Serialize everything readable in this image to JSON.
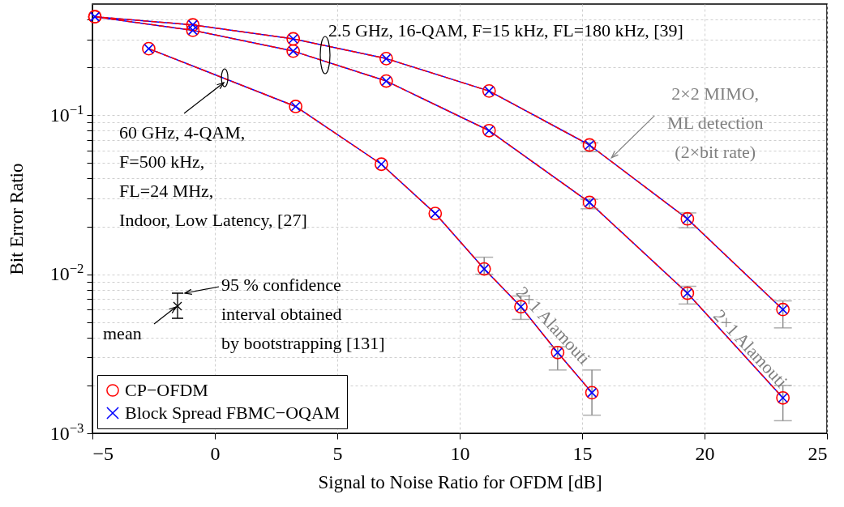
{
  "chart_data": {
    "type": "line",
    "xlabel": "Signal to Noise Ratio for OFDM [dB]",
    "ylabel": "Bit Error Ratio",
    "log": true,
    "grid": true,
    "legend": "bottom left",
    "xlim": [
      -5,
      25
    ],
    "xticks": [
      {
        "value": -5,
        "label": "−5"
      },
      0,
      5,
      10,
      15,
      20,
      25
    ],
    "ylim": [
      0.001,
      0.5
    ],
    "yticks": [
      {
        "value": 0.001,
        "label": "10$^{−3}$"
      },
      {
        "value": 0.002,
        "label": null
      },
      {
        "value": 0.003,
        "label": null
      },
      {
        "value": 0.004,
        "label": null
      },
      {
        "value": 0.005,
        "label": null
      },
      {
        "value": 0.006,
        "label": null
      },
      {
        "value": 0.007,
        "label": null
      },
      {
        "value": 0.008,
        "label": null
      },
      {
        "value": 0.009,
        "label": null
      },
      {
        "value": 0.01,
        "label": "10$^{−2}$"
      },
      {
        "value": 0.02,
        "label": null
      },
      {
        "value": 0.03,
        "label": null
      },
      {
        "value": 0.04,
        "label": null
      },
      {
        "value": 0.05,
        "label": null
      },
      {
        "value": 0.06,
        "label": null
      },
      {
        "value": 0.07,
        "label": null
      },
      {
        "value": 0.08,
        "label": null
      },
      {
        "value": 0.09,
        "label": null
      },
      {
        "value": 0.1,
        "label": "10$^{−1}$"
      },
      {
        "value": 0.2,
        "label": null
      },
      {
        "value": 0.3,
        "label": null
      },
      {
        "value": 0.4,
        "label": null
      }
    ],
    "series": [
      {
        "name": "CP−OFDM",
        "color": "#ff0000",
        "marker": "circle",
        "line_style": "dashed",
        "x": [
          -4.9,
          -0.9,
          3.2,
          7.0,
          11.2,
          15.3,
          19.3,
          23.2
        ],
        "values": [
          0.416,
          0.37,
          0.302,
          0.227,
          0.142,
          0.065,
          0.0223,
          0.006
        ],
        "errors": [
          null,
          null,
          null,
          null,
          null,
          [
            0.059,
            0.067
          ],
          [
            0.0196,
            0.0243
          ],
          [
            0.0046,
            0.0068
          ]
        ]
      },
      {
        "color": "#ff0000",
        "marker": "circle",
        "line_style": "dashed",
        "x": [
          -4.9,
          -0.9,
          3.2,
          7.0,
          11.2,
          15.3,
          19.3,
          23.2
        ],
        "values": [
          0.416,
          0.342,
          0.253,
          0.164,
          0.08,
          0.0283,
          0.0076,
          0.00167
        ],
        "errors": [
          null,
          null,
          null,
          null,
          null,
          [
            0.0258,
            0.0296
          ],
          [
            0.0065,
            0.0084
          ],
          [
            0.0012,
            0.002
          ]
        ]
      },
      {
        "color": "#ff0000",
        "marker": "circle",
        "line_style": "dashed",
        "x": [
          -2.7,
          3.3,
          6.8,
          9.0,
          11.0,
          12.5,
          14.0,
          15.4
        ],
        "values": [
          0.262,
          0.1135,
          0.0492,
          0.0241,
          0.0108,
          0.00625,
          0.00322,
          0.0018
        ],
        "errors": [
          null,
          null,
          null,
          null,
          [
            0.01,
            0.0128
          ],
          [
            0.0052,
            0.0073
          ],
          [
            0.0025,
            0.0035
          ],
          [
            0.0013,
            0.0025
          ]
        ]
      },
      {
        "name": "Block Spread FBMC−OQAM",
        "color": "#0000ff",
        "marker": "cross",
        "line_style": "solid",
        "x": [
          -4.9,
          -0.9,
          3.2,
          7.0,
          11.2,
          15.3,
          19.3,
          23.2
        ],
        "values": [
          0.416,
          0.37,
          0.302,
          0.227,
          0.142,
          0.065,
          0.0223,
          0.006
        ]
      },
      {
        "color": "#0000ff",
        "marker": "cross",
        "line_style": "solid",
        "x": [
          -4.9,
          -0.9,
          3.2,
          7.0,
          11.2,
          15.3,
          19.3,
          23.2
        ],
        "values": [
          0.416,
          0.342,
          0.253,
          0.164,
          0.08,
          0.0283,
          0.0076,
          0.00167
        ]
      },
      {
        "color": "#0000ff",
        "marker": "cross",
        "line_style": "solid",
        "x": [
          -2.7,
          3.3,
          6.8,
          9.0,
          11.0,
          12.5,
          14.0,
          15.4
        ],
        "values": [
          0.262,
          0.1135,
          0.0492,
          0.0241,
          0.0108,
          0.00625,
          0.00322,
          0.0018
        ]
      }
    ],
    "annotations": [
      "2.5 GHz, 16-QAM, F=15 kHz, FL=180 kHz, [39]",
      {
        "text": "60 GHz, 4-QAM,\nF=500 kHz,\nFL=24 MHz,\nIndoor, Low Latency, [27]",
        "x": 0.4,
        "y": 0.172
      },
      {
        "text": "2×2 MIMO,\nML detection\n(2×bit rate)",
        "x": 16.2,
        "y": 0.054
      },
      {
        "text": "2×1 Alamouti",
        "x": 12.8,
        "y": 0.0055
      },
      {
        "text": "2×1 Alamouti",
        "x": 20.9,
        "y": 0.004
      },
      "95 % confidence\ninterval obtained\nby bootstrapping [131]",
      "mean"
    ]
  }
}
